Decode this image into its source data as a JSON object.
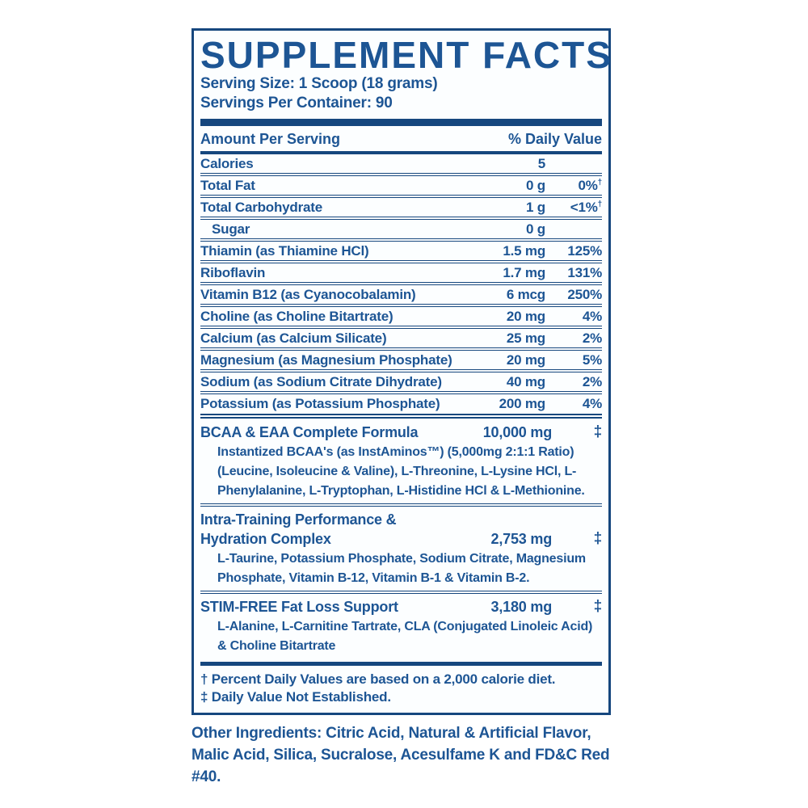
{
  "colors": {
    "text_navy": "#1d5594",
    "bar_navy": "#16477e",
    "panel_background": "#fcfeff",
    "page_background": "#ffffff"
  },
  "panel": {
    "title": "SUPPLEMENT FACTS",
    "serving_size": "Serving Size: 1 Scoop (18 grams)",
    "servings_per_container": "Servings Per Container: 90",
    "header": {
      "left": "Amount Per Serving",
      "right": "% Daily Value"
    },
    "rows": [
      {
        "name": "Calories",
        "amount": "5",
        "dv": ""
      },
      {
        "name": "Total Fat",
        "amount": "0 g",
        "dv": "0%",
        "dv_sup": "†"
      },
      {
        "name": "Total Carbohydrate",
        "amount": "1 g",
        "dv": "<1%",
        "dv_sup": "†"
      },
      {
        "name": "Sugar",
        "amount": "0 g",
        "dv": "",
        "indent": true
      },
      {
        "name": "Thiamin (as Thiamine HCl)",
        "amount": "1.5 mg",
        "dv": "125%"
      },
      {
        "name": "Riboflavin",
        "amount": "1.7 mg",
        "dv": "131%"
      },
      {
        "name": "Vitamin B12 (as Cyanocobalamin)",
        "amount": "6 mcg",
        "dv": "250%"
      },
      {
        "name": "Choline (as Choline Bitartrate)",
        "amount": "20 mg",
        "dv": "4%"
      },
      {
        "name": "Calcium (as Calcium Silicate)",
        "amount": "25 mg",
        "dv": "2%"
      },
      {
        "name": "Magnesium (as Magnesium Phosphate)",
        "amount": "20 mg",
        "dv": "5%"
      },
      {
        "name": "Sodium (as Sodium Citrate Dihydrate)",
        "amount": "40 mg",
        "dv": "2%"
      },
      {
        "name": "Potassium (as Potassium Phosphate)",
        "amount": "200 mg",
        "dv": "4%"
      }
    ],
    "blends": [
      {
        "name": "BCAA & EAA Complete Formula",
        "name2": "",
        "amount": "10,000 mg",
        "dv_symbol": "‡",
        "description": "Instantized BCAA's (as InstAminos™) (5,000mg 2:1:1 Ratio) (Leucine, Isoleucine & Valine), L-Threonine, L-Lysine HCl, L-Phenylalanine, L-Tryptophan, L-Histidine HCl & L-Methionine."
      },
      {
        "name": "Intra-Training Performance &",
        "name2": "Hydration Complex",
        "amount": "2,753 mg",
        "dv_symbol": "‡",
        "description": "L-Taurine, Potassium Phosphate, Sodium Citrate, Magnesium Phosphate, Vitamin B-12, Vitamin B-1 & Vitamin B-2."
      },
      {
        "name": "STIM-FREE Fat Loss Support",
        "name2": "",
        "amount": "3,180 mg",
        "dv_symbol": "‡",
        "description": "L-Alanine, L-Carnitine Tartrate, CLA (Conjugated Linoleic Acid) & Choline Bitartrate"
      }
    ],
    "footnotes": [
      "† Percent Daily Values are based on a 2,000 calorie diet.",
      "‡ Daily Value Not Established."
    ]
  },
  "other_ingredients": {
    "label": "Other Ingredients:",
    "text": " Citric Acid, Natural & Artificial Flavor, Malic Acid, Silica, Sucralose, Acesulfame K and FD&C Red #40."
  }
}
